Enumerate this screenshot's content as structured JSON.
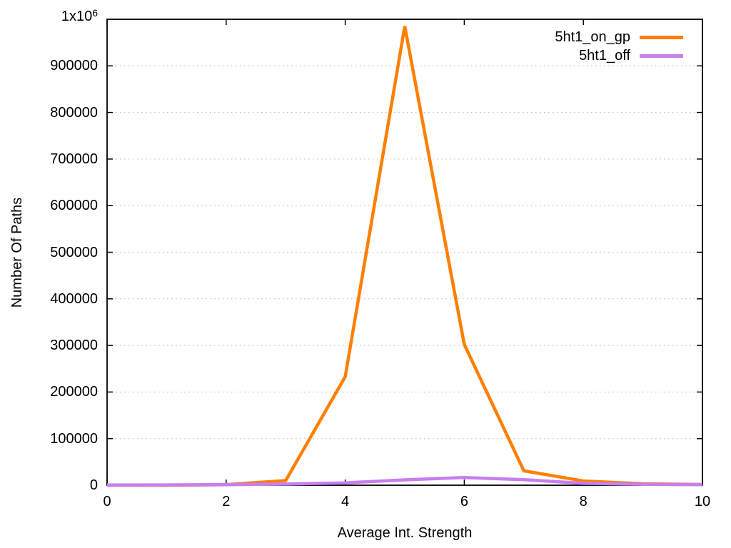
{
  "page": {
    "background": "#ffffff",
    "axis_color": "#000000"
  },
  "chart_data": {
    "type": "line",
    "title": "",
    "xlabel": "Average Int. Strength",
    "ylabel": "Number Of Paths",
    "xlim": [
      0,
      10
    ],
    "ylim": [
      0,
      1000000
    ],
    "x_ticks": [
      0,
      2,
      4,
      6,
      8,
      10
    ],
    "y_ticks": [
      0,
      100000,
      200000,
      300000,
      400000,
      500000,
      600000,
      700000,
      800000,
      900000
    ],
    "y_max_tick_label": {
      "base": "1x10",
      "exp": "6"
    },
    "grid": {
      "horizontal": true,
      "vertical": false,
      "style": "dotted",
      "color": "#b4b4b4"
    },
    "legend_position": "top-right-inside",
    "x": [
      0,
      1,
      2,
      3,
      4,
      5,
      6,
      7,
      8,
      9,
      10
    ],
    "series": [
      {
        "name": "5ht1_on_gp",
        "color": "#ff7f00",
        "values": [
          0,
          0,
          1000,
          10000,
          233000,
          985000,
          302000,
          31000,
          9000,
          3000,
          1500
        ]
      },
      {
        "name": "5ht1_off",
        "color": "#c77ef0",
        "values": [
          300,
          600,
          1200,
          2500,
          5000,
          11500,
          16500,
          12000,
          4000,
          2000,
          1200
        ]
      }
    ]
  }
}
